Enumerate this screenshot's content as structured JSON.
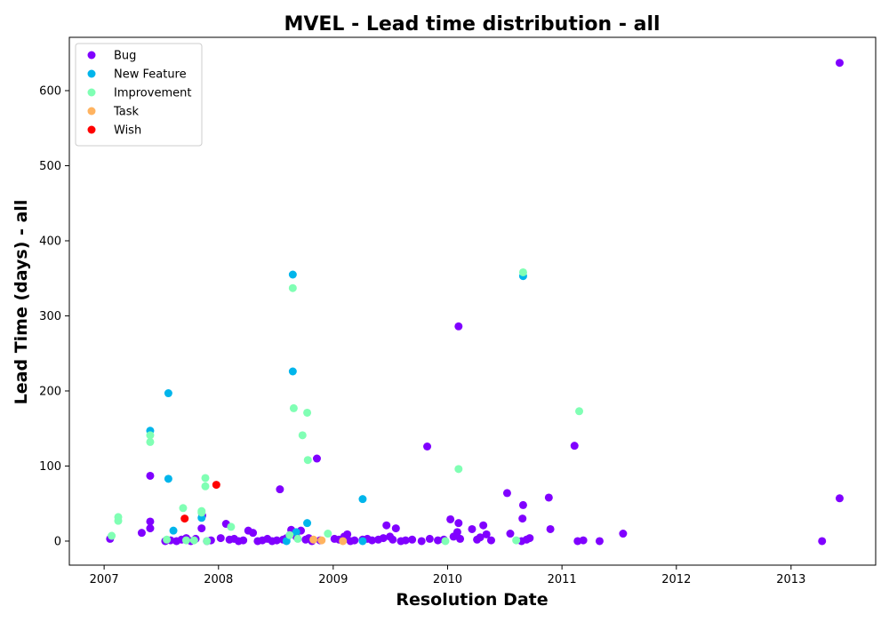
{
  "chart_data": {
    "type": "scatter",
    "title": "MVEL - Lead time distribution - all",
    "xlabel": "Resolution Date",
    "ylabel": "Lead Time (days) - all",
    "xlim": [
      "2006-09-12",
      "2013-09-28"
    ],
    "ylim": [
      -32,
      671
    ],
    "x_ticks": [
      "2007",
      "2008",
      "2009",
      "2010",
      "2011",
      "2012",
      "2013"
    ],
    "y_ticks": [
      0,
      100,
      200,
      300,
      400,
      500,
      600
    ],
    "grid": false,
    "legend_position": "top-left",
    "series": [
      {
        "name": "Bug",
        "color": "#8000ff",
        "points": [
          [
            "2007-01-20",
            3
          ],
          [
            "2007-05-01",
            11
          ],
          [
            "2007-05-28",
            17
          ],
          [
            "2007-05-28",
            26
          ],
          [
            "2007-05-28",
            87
          ],
          [
            "2007-07-15",
            0
          ],
          [
            "2007-08-01",
            1
          ],
          [
            "2007-08-20",
            0
          ],
          [
            "2007-09-05",
            2
          ],
          [
            "2007-09-20",
            4
          ],
          [
            "2007-10-05",
            0
          ],
          [
            "2007-10-20",
            3
          ],
          [
            "2007-11-08",
            17
          ],
          [
            "2007-11-10",
            34
          ],
          [
            "2007-11-25",
            0
          ],
          [
            "2007-12-08",
            1
          ],
          [
            "2008-01-08",
            4
          ],
          [
            "2008-01-25",
            23
          ],
          [
            "2008-02-05",
            2
          ],
          [
            "2008-02-20",
            3
          ],
          [
            "2008-03-05",
            0
          ],
          [
            "2008-03-20",
            1
          ],
          [
            "2008-04-05",
            14
          ],
          [
            "2008-04-20",
            11
          ],
          [
            "2008-05-05",
            0
          ],
          [
            "2008-05-20",
            1
          ],
          [
            "2008-06-05",
            3
          ],
          [
            "2008-06-20",
            0
          ],
          [
            "2008-07-05",
            1
          ],
          [
            "2008-07-15",
            69
          ],
          [
            "2008-07-25",
            2
          ],
          [
            "2008-08-05",
            4
          ],
          [
            "2008-08-20",
            15
          ],
          [
            "2008-08-25",
            10
          ],
          [
            "2008-09-05",
            6
          ],
          [
            "2008-09-20",
            14
          ],
          [
            "2008-10-05",
            2
          ],
          [
            "2008-10-15",
            4
          ],
          [
            "2008-10-25",
            0
          ],
          [
            "2008-11-10",
            110
          ],
          [
            "2008-11-20",
            1
          ],
          [
            "2009-01-05",
            3
          ],
          [
            "2009-01-20",
            2
          ],
          [
            "2009-02-05",
            6
          ],
          [
            "2009-02-15",
            9
          ],
          [
            "2009-02-25",
            0
          ],
          [
            "2009-03-10",
            1
          ],
          [
            "2009-04-05",
            2
          ],
          [
            "2009-04-20",
            3
          ],
          [
            "2009-05-05",
            1
          ],
          [
            "2009-05-25",
            2
          ],
          [
            "2009-06-10",
            4
          ],
          [
            "2009-06-20",
            21
          ],
          [
            "2009-07-01",
            6
          ],
          [
            "2009-07-10",
            2
          ],
          [
            "2009-07-20",
            17
          ],
          [
            "2009-08-05",
            0
          ],
          [
            "2009-08-20",
            1
          ],
          [
            "2009-09-10",
            2
          ],
          [
            "2009-10-10",
            0
          ],
          [
            "2009-10-28",
            126
          ],
          [
            "2009-11-05",
            3
          ],
          [
            "2009-12-01",
            1
          ],
          [
            "2009-12-20",
            2
          ],
          [
            "2010-01-10",
            29
          ],
          [
            "2010-01-20",
            6
          ],
          [
            "2010-02-01",
            12
          ],
          [
            "2010-02-05",
            24
          ],
          [
            "2010-02-05",
            286
          ],
          [
            "2010-02-10",
            3
          ],
          [
            "2010-03-20",
            16
          ],
          [
            "2010-04-05",
            2
          ],
          [
            "2010-04-15",
            5
          ],
          [
            "2010-04-25",
            21
          ],
          [
            "2010-05-05",
            9
          ],
          [
            "2010-05-20",
            1
          ],
          [
            "2010-07-10",
            64
          ],
          [
            "2010-07-20",
            10
          ],
          [
            "2010-08-25",
            0
          ],
          [
            "2010-08-28",
            30
          ],
          [
            "2010-08-30",
            48
          ],
          [
            "2010-09-10",
            2
          ],
          [
            "2010-09-20",
            4
          ],
          [
            "2010-11-20",
            58
          ],
          [
            "2010-11-25",
            16
          ],
          [
            "2011-02-10",
            127
          ],
          [
            "2011-02-20",
            0
          ],
          [
            "2011-03-10",
            1
          ],
          [
            "2011-05-01",
            0
          ],
          [
            "2011-07-15",
            10
          ],
          [
            "2013-04-10",
            0
          ],
          [
            "2013-06-05",
            637
          ],
          [
            "2013-06-05",
            57
          ]
        ]
      },
      {
        "name": "New Feature",
        "color": "#00b5eb",
        "points": [
          [
            "2007-05-28",
            147
          ],
          [
            "2007-07-25",
            197
          ],
          [
            "2007-07-25",
            83
          ],
          [
            "2007-08-10",
            14
          ],
          [
            "2007-11-08",
            31
          ],
          [
            "2008-08-25",
            355
          ],
          [
            "2008-08-25",
            226
          ],
          [
            "2008-10-10",
            24
          ],
          [
            "2008-09-05",
            12
          ],
          [
            "2008-08-05",
            0
          ],
          [
            "2009-04-05",
            56
          ],
          [
            "2009-04-05",
            0
          ],
          [
            "2010-08-30",
            353
          ]
        ]
      },
      {
        "name": "Improvement",
        "color": "#80ffb4",
        "points": [
          [
            "2007-01-25",
            7
          ],
          [
            "2007-02-15",
            32
          ],
          [
            "2007-02-15",
            27
          ],
          [
            "2007-05-28",
            141
          ],
          [
            "2007-05-28",
            132
          ],
          [
            "2007-07-20",
            2
          ],
          [
            "2007-09-10",
            44
          ],
          [
            "2007-09-20",
            1
          ],
          [
            "2007-11-08",
            40
          ],
          [
            "2007-11-08",
            38
          ],
          [
            "2007-11-20",
            84
          ],
          [
            "2007-11-20",
            73
          ],
          [
            "2007-11-25",
            0
          ],
          [
            "2008-02-10",
            19
          ],
          [
            "2008-08-15",
            8
          ],
          [
            "2008-08-25",
            337
          ],
          [
            "2008-08-28",
            177
          ],
          [
            "2008-09-25",
            141
          ],
          [
            "2008-10-10",
            171
          ],
          [
            "2008-10-12",
            108
          ],
          [
            "2008-12-15",
            10
          ],
          [
            "2009-12-25",
            0
          ],
          [
            "2010-02-05",
            96
          ],
          [
            "2010-08-08",
            1
          ],
          [
            "2010-08-30",
            358
          ],
          [
            "2011-02-25",
            173
          ],
          [
            "2007-10-15",
            1
          ],
          [
            "2008-09-10",
            3
          ]
        ]
      },
      {
        "name": "Task",
        "color": "#ffb360",
        "points": [
          [
            "2008-10-30",
            2
          ],
          [
            "2008-11-25",
            1
          ],
          [
            "2009-02-01",
            0
          ]
        ]
      },
      {
        "name": "Wish",
        "color": "#ff0000",
        "points": [
          [
            "2007-09-15",
            30
          ],
          [
            "2007-12-25",
            75
          ]
        ]
      }
    ]
  }
}
